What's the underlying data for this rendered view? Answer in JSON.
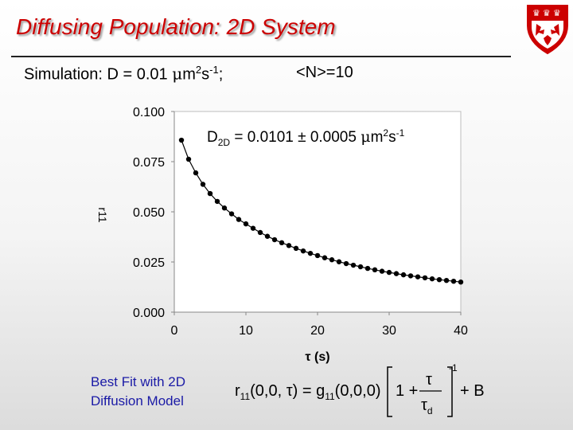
{
  "slide": {
    "title": "Diffusing Population: 2D System",
    "sim_prefix": "Simulation: D = 0.01 ",
    "mu": "μ",
    "sim_unit_m": "m",
    "sim_unit_exp2": "2",
    "sim_unit_s": "s",
    "sim_unit_expm1": "-1",
    "sim_semicolon": ";",
    "n_avg": "<N>=10",
    "fit_label_line1": "Best Fit with 2D",
    "fit_label_line2": "Diffusion Model"
  },
  "formula": {
    "lhs": "r",
    "lhs_sub": "11",
    "lhs_args": "(0,0, τ) = g",
    "g_sub": "11",
    "g_args": "(0,0,0)",
    "one_plus": "1 +",
    "num": "τ",
    "den": "τ",
    "den_sub": "d",
    "exp": "-1",
    "plus_b": "+ B"
  },
  "colors": {
    "title": "#cc0000",
    "fit_label": "#1a1aa6",
    "marker": "#000000",
    "logo_red": "#cc0000"
  },
  "chart_data": {
    "type": "scatter",
    "xlabel": "τ (s)",
    "ylabel": "r11",
    "xlim": [
      0,
      40
    ],
    "ylim": [
      0,
      0.1
    ],
    "xticks": [
      0,
      10,
      20,
      30,
      40
    ],
    "yticks": [
      "0.000",
      "0.025",
      "0.050",
      "0.075",
      "0.100"
    ],
    "annotation_main": "D",
    "annotation_sub": "2D",
    "annotation_value": " = 0.0101 ± 0.0005 ",
    "annotation_mu": "μ",
    "annotation_unit_m": "m",
    "annotation_exp2": "2",
    "annotation_unit_s": "s",
    "annotation_expm1": "-1",
    "x": [
      1,
      2,
      3,
      4,
      5,
      6,
      7,
      8,
      9,
      10,
      11,
      12,
      13,
      14,
      15,
      16,
      17,
      18,
      19,
      20,
      21,
      22,
      23,
      24,
      25,
      26,
      27,
      28,
      29,
      30,
      31,
      32,
      33,
      34,
      35,
      36,
      37,
      38,
      39,
      40
    ],
    "y": [
      0.0857,
      0.0762,
      0.0694,
      0.0637,
      0.0591,
      0.0552,
      0.0519,
      0.049,
      0.0462,
      0.044,
      0.0418,
      0.0397,
      0.0378,
      0.0361,
      0.0346,
      0.0332,
      0.0318,
      0.0305,
      0.0293,
      0.0282,
      0.0271,
      0.0261,
      0.0251,
      0.0242,
      0.0234,
      0.0226,
      0.0218,
      0.0211,
      0.0204,
      0.0198,
      0.0192,
      0.0186,
      0.0181,
      0.0176,
      0.0171,
      0.0166,
      0.0162,
      0.0158,
      0.0154,
      0.015
    ]
  }
}
